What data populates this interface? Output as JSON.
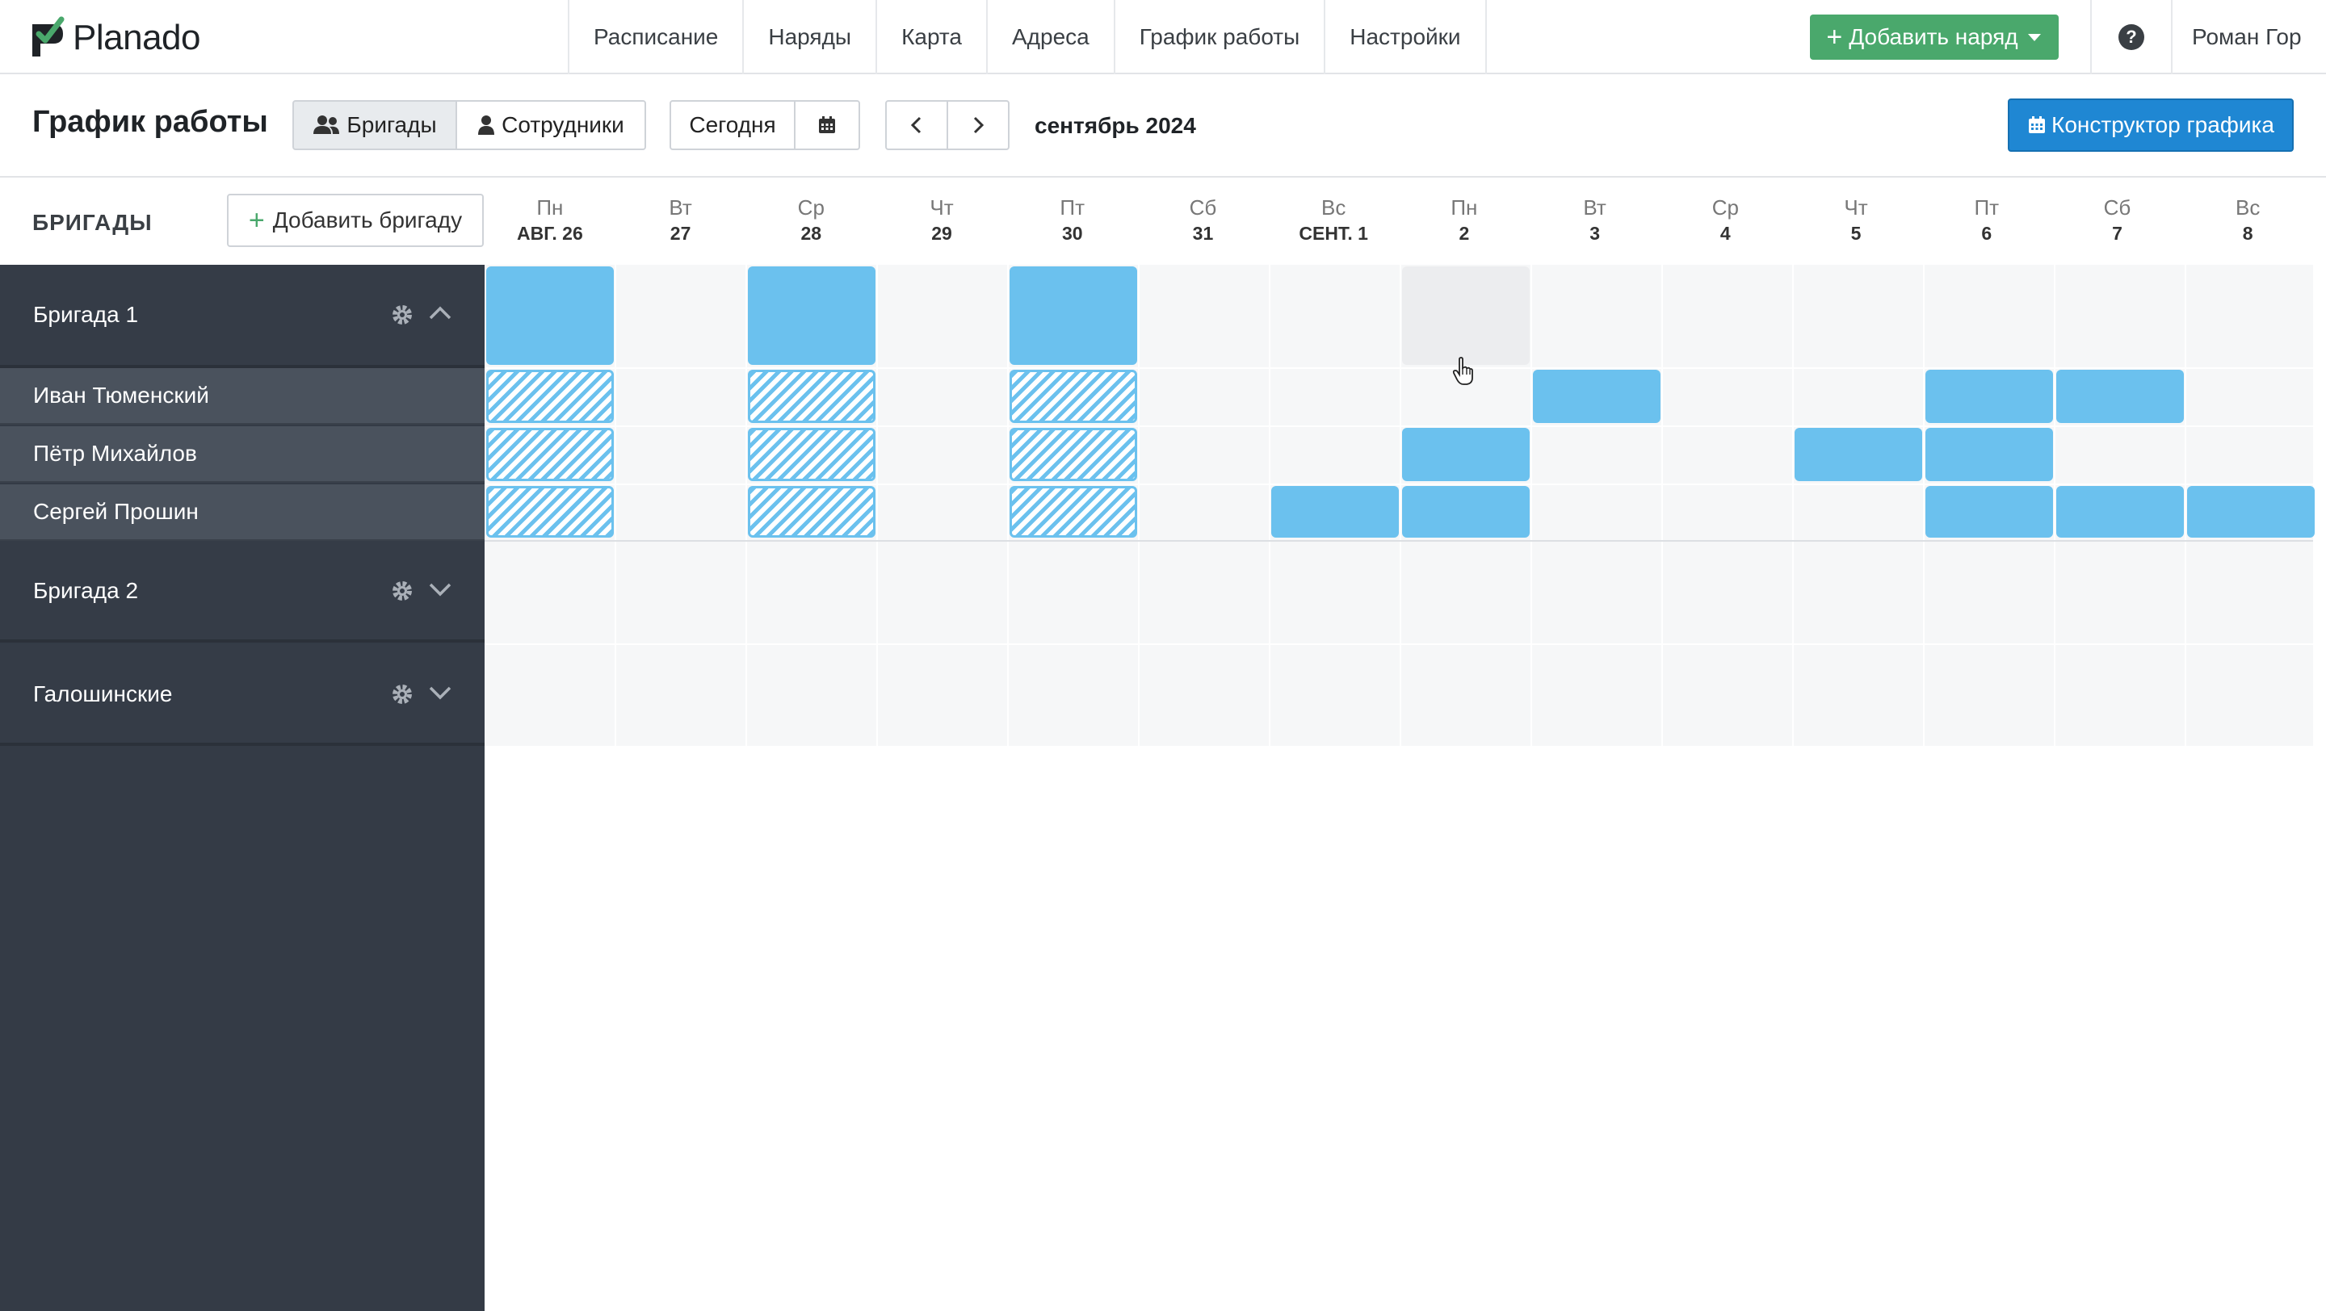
{
  "app": {
    "name": "Planado"
  },
  "nav": {
    "items": [
      "Расписание",
      "Наряды",
      "Карта",
      "Адреса",
      "График работы",
      "Настройки"
    ],
    "add_order_label": "Добавить наряд",
    "help_label": "?",
    "user_name": "Роман Гор"
  },
  "toolbar": {
    "title": "График работы",
    "view_brigades": "Бригады",
    "view_employees": "Сотрудники",
    "today": "Сегодня",
    "month_label": "сентябрь 2024",
    "constructor_label": "Конструктор графика"
  },
  "sidebar": {
    "header": "БРИГАДЫ",
    "add_brigade": "Добавить бригаду",
    "brigades": [
      {
        "name": "Бригада 1",
        "expanded": true,
        "members": [
          "Иван Тюменский",
          "Пётр Михайлов",
          "Сергей Прошин"
        ]
      },
      {
        "name": "Бригада 2",
        "expanded": false,
        "members": []
      },
      {
        "name": "Галошинские",
        "expanded": false,
        "members": []
      }
    ]
  },
  "days": [
    {
      "name": "Пн",
      "date": "АВГ. 26"
    },
    {
      "name": "Вт",
      "date": "27"
    },
    {
      "name": "Ср",
      "date": "28"
    },
    {
      "name": "Чт",
      "date": "29"
    },
    {
      "name": "Пт",
      "date": "30"
    },
    {
      "name": "Сб",
      "date": "31"
    },
    {
      "name": "Вс",
      "date": "СЕНТ. 1"
    },
    {
      "name": "Пн",
      "date": "2"
    },
    {
      "name": "Вт",
      "date": "3"
    },
    {
      "name": "Ср",
      "date": "4"
    },
    {
      "name": "Чт",
      "date": "5"
    },
    {
      "name": "Пт",
      "date": "6"
    },
    {
      "name": "Сб",
      "date": "7"
    },
    {
      "name": "Вс",
      "date": "8"
    }
  ],
  "schedule": {
    "brigade_1": {
      "solid_days": [
        0,
        2,
        4
      ],
      "hover_day": 7
    },
    "members": [
      {
        "hatch_days": [
          0,
          2,
          4
        ],
        "solid_days": [
          8,
          11,
          12
        ]
      },
      {
        "hatch_days": [
          0,
          2,
          4
        ],
        "solid_days": [
          7,
          10,
          11
        ]
      },
      {
        "hatch_days": [
          0,
          2,
          4
        ],
        "solid_days": [
          6,
          7,
          11,
          12,
          13
        ]
      }
    ]
  },
  "colors": {
    "accent_blue": "#1f87d3",
    "shift_blue": "#6bc1ee",
    "green": "#4aa86c",
    "sidebar_dark": "#343b46"
  }
}
